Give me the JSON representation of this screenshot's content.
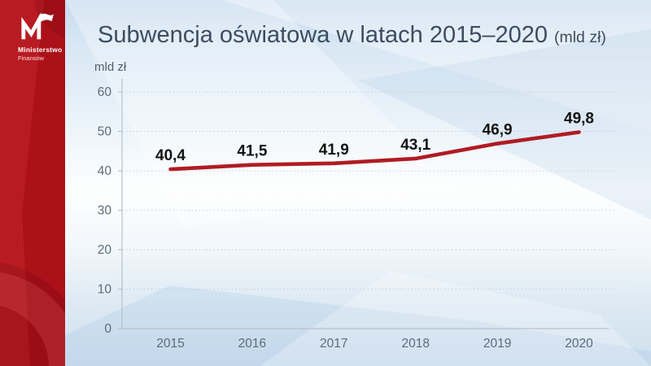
{
  "branding": {
    "logo": "mf-logo",
    "org_name_line1": "Ministerstwo",
    "org_name_line2": "Finansów"
  },
  "header": {
    "title": "Subwencja oświatowa w latach 2015–2020",
    "title_suffix": "(mld zł)"
  },
  "chart_data": {
    "type": "line",
    "title": "Subwencja oświatowa w latach 2015–2020 (mld zł)",
    "unit_label": "mld zł",
    "categories": [
      "2015",
      "2016",
      "2017",
      "2018",
      "2019",
      "2020"
    ],
    "values": [
      40.4,
      41.5,
      41.9,
      43.1,
      46.9,
      49.8
    ],
    "value_labels": [
      "40,4",
      "41,5",
      "41,9",
      "43,1",
      "46,9",
      "49,8"
    ],
    "ylim": [
      0,
      60
    ],
    "yticks": [
      0,
      10,
      20,
      30,
      40,
      50,
      60
    ],
    "grid": "dotted-horizontal",
    "legend": "none",
    "colors": {
      "line": "#b01b24",
      "value_label": "#121212",
      "axis_line": "#b7c1cb",
      "grid_line": "#c6ced7",
      "tick_text": "#5c6b7b",
      "sidebar_red": "#ac1019",
      "title_text": "#3d4c63"
    }
  }
}
